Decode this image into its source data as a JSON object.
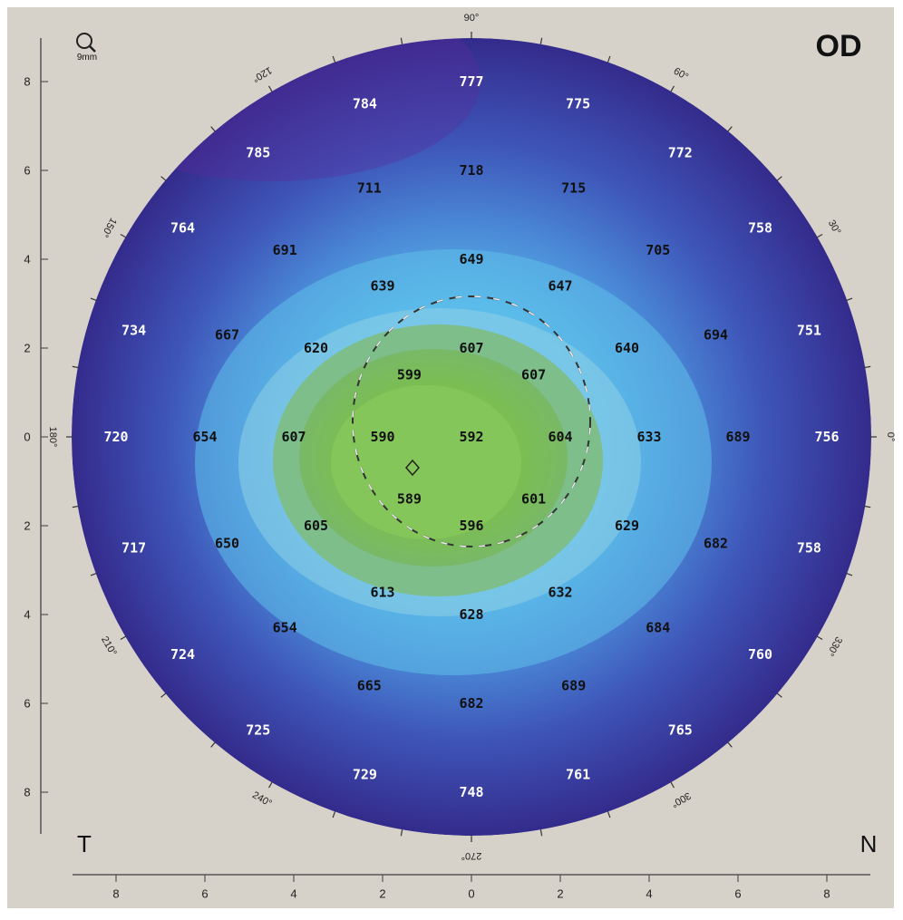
{
  "header": {
    "eye_label": "OD",
    "zoom_label": "9mm",
    "zoom_icon": "magnifier-icon"
  },
  "corners": {
    "temporal": "T",
    "nasal": "N"
  },
  "colors": {
    "background": "#d6d2c9",
    "frame": "#ffffff",
    "outer_ring": "#3a2f94",
    "inner_zone": "#7bbf4e",
    "mid_zone": "#5bbce8"
  },
  "chart_data": {
    "type": "heatmap",
    "subtype": "corneal-thickness-map",
    "units": "µm",
    "x_axis": {
      "ticks": [
        "8",
        "6",
        "4",
        "2",
        "0",
        "2",
        "4",
        "6",
        "8"
      ],
      "range": [
        -9,
        9
      ]
    },
    "y_axis": {
      "ticks": [
        "8",
        "6",
        "4",
        "2",
        "0",
        "2",
        "4",
        "6",
        "8"
      ],
      "range": [
        -9,
        9
      ]
    },
    "angle_labels": [
      {
        "angle": 0,
        "label": "0°"
      },
      {
        "angle": 30,
        "label": "30°"
      },
      {
        "angle": 60,
        "label": "60°"
      },
      {
        "angle": 90,
        "label": "90°"
      },
      {
        "angle": 120,
        "label": "120°"
      },
      {
        "angle": 150,
        "label": "150°"
      },
      {
        "angle": 180,
        "label": "180°"
      },
      {
        "angle": 210,
        "label": "210°"
      },
      {
        "angle": 240,
        "label": "240°"
      },
      {
        "angle": 270,
        "label": "270°"
      },
      {
        "angle": 300,
        "label": "300°"
      },
      {
        "angle": 330,
        "label": "330°"
      }
    ],
    "points": [
      {
        "x": 0,
        "y": 8,
        "value": "777"
      },
      {
        "x": -2.4,
        "y": 7.5,
        "value": "784"
      },
      {
        "x": 2.4,
        "y": 7.5,
        "value": "775"
      },
      {
        "x": -4.8,
        "y": 6.4,
        "value": "785"
      },
      {
        "x": 4.7,
        "y": 6.4,
        "value": "772"
      },
      {
        "x": 0,
        "y": 6,
        "value": "718"
      },
      {
        "x": -2.3,
        "y": 5.6,
        "value": "711"
      },
      {
        "x": 2.3,
        "y": 5.6,
        "value": "715"
      },
      {
        "x": -6.5,
        "y": 4.7,
        "value": "764"
      },
      {
        "x": 6.5,
        "y": 4.7,
        "value": "758"
      },
      {
        "x": -4.2,
        "y": 4.2,
        "value": "691"
      },
      {
        "x": 4.2,
        "y": 4.2,
        "value": "705"
      },
      {
        "x": 0,
        "y": 4,
        "value": "649"
      },
      {
        "x": -2,
        "y": 3.4,
        "value": "639"
      },
      {
        "x": 2,
        "y": 3.4,
        "value": "647"
      },
      {
        "x": -7.6,
        "y": 2.4,
        "value": "734"
      },
      {
        "x": 7.6,
        "y": 2.4,
        "value": "751"
      },
      {
        "x": -5.5,
        "y": 2.3,
        "value": "667"
      },
      {
        "x": 5.5,
        "y": 2.3,
        "value": "694"
      },
      {
        "x": -3.5,
        "y": 2,
        "value": "620"
      },
      {
        "x": 3.5,
        "y": 2,
        "value": "640"
      },
      {
        "x": 0,
        "y": 2,
        "value": "607"
      },
      {
        "x": -1.4,
        "y": 1.4,
        "value": "599"
      },
      {
        "x": 1.4,
        "y": 1.4,
        "value": "607"
      },
      {
        "x": -8,
        "y": 0,
        "value": "720"
      },
      {
        "x": -6,
        "y": 0,
        "value": "654"
      },
      {
        "x": -4,
        "y": 0,
        "value": "607"
      },
      {
        "x": -2,
        "y": 0,
        "value": "590"
      },
      {
        "x": 0,
        "y": 0,
        "value": "592"
      },
      {
        "x": 2,
        "y": 0,
        "value": "604"
      },
      {
        "x": 4,
        "y": 0,
        "value": "633"
      },
      {
        "x": 6,
        "y": 0,
        "value": "689"
      },
      {
        "x": 8,
        "y": 0,
        "value": "756"
      },
      {
        "x": -1.4,
        "y": -1.4,
        "value": "589"
      },
      {
        "x": 1.4,
        "y": -1.4,
        "value": "601"
      },
      {
        "x": -3.5,
        "y": -2,
        "value": "605"
      },
      {
        "x": 3.5,
        "y": -2,
        "value": "629"
      },
      {
        "x": 0,
        "y": -2,
        "value": "596"
      },
      {
        "x": -7.6,
        "y": -2.5,
        "value": "717"
      },
      {
        "x": 7.6,
        "y": -2.5,
        "value": "758"
      },
      {
        "x": -5.5,
        "y": -2.4,
        "value": "650"
      },
      {
        "x": 5.5,
        "y": -2.4,
        "value": "682"
      },
      {
        "x": -2,
        "y": -3.5,
        "value": "613"
      },
      {
        "x": 2,
        "y": -3.5,
        "value": "632"
      },
      {
        "x": 0,
        "y": -4,
        "value": "628"
      },
      {
        "x": -4.2,
        "y": -4.3,
        "value": "654"
      },
      {
        "x": 4.2,
        "y": -4.3,
        "value": "684"
      },
      {
        "x": -6.5,
        "y": -4.9,
        "value": "724"
      },
      {
        "x": 6.5,
        "y": -4.9,
        "value": "760"
      },
      {
        "x": -2.3,
        "y": -5.6,
        "value": "665"
      },
      {
        "x": 2.3,
        "y": -5.6,
        "value": "689"
      },
      {
        "x": 0,
        "y": -6,
        "value": "682"
      },
      {
        "x": -4.8,
        "y": -6.6,
        "value": "725"
      },
      {
        "x": 4.7,
        "y": -6.6,
        "value": "765"
      },
      {
        "x": -2.4,
        "y": -7.6,
        "value": "729"
      },
      {
        "x": 2.4,
        "y": -7.6,
        "value": "761"
      },
      {
        "x": 0,
        "y": -8,
        "value": "748"
      }
    ],
    "grid": false,
    "legend": "none"
  }
}
